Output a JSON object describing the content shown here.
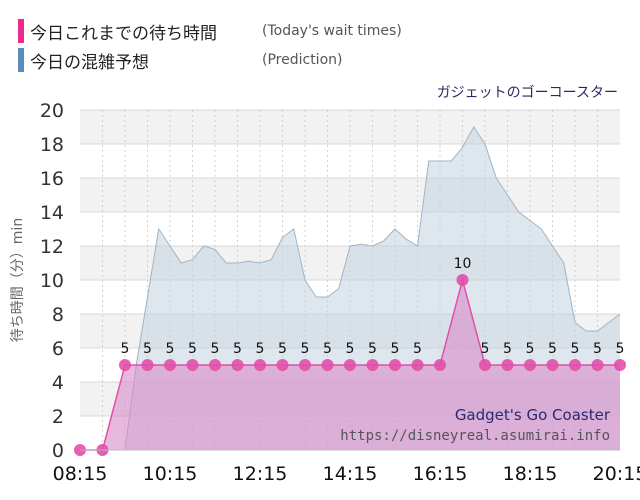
{
  "legend": {
    "items": [
      {
        "label": "今日これまでの待ち時間",
        "sub": "(Today's wait times)",
        "color": "#ee2a8b"
      },
      {
        "label": "今日の混雑予想",
        "sub": "(Prediction)",
        "color": "#5b8db8"
      }
    ]
  },
  "chart_data": {
    "type": "area",
    "title": "ガジェットのゴーコースター",
    "ylabel": "待ち時間（分）min",
    "ylim": [
      0,
      20
    ],
    "yticks": [
      0,
      2,
      4,
      6,
      8,
      10,
      12,
      14,
      16,
      18,
      20
    ],
    "xlim": [
      "08:15",
      "20:15"
    ],
    "xticks": [
      "08:15",
      "10:15",
      "12:15",
      "14:15",
      "16:15",
      "18:15",
      "20:15"
    ],
    "grid": true,
    "series": [
      {
        "name": "今日の混雑予想",
        "x": [
          "09:15",
          "09:30",
          "09:45",
          "10:00",
          "10:15",
          "10:30",
          "10:45",
          "11:00",
          "11:15",
          "11:30",
          "11:45",
          "12:00",
          "12:15",
          "12:30",
          "12:45",
          "13:00",
          "13:15",
          "13:30",
          "13:45",
          "14:00",
          "14:15",
          "14:30",
          "14:45",
          "15:00",
          "15:15",
          "15:30",
          "15:45",
          "16:00",
          "16:15",
          "16:30",
          "16:45",
          "17:00",
          "17:15",
          "17:30",
          "17:45",
          "18:00",
          "18:15",
          "18:30",
          "18:45",
          "19:00",
          "19:15",
          "19:30",
          "19:45",
          "20:00",
          "20:15"
        ],
        "values": [
          0,
          5,
          9,
          13,
          12,
          11,
          11.2,
          12,
          11.8,
          11,
          11,
          11.1,
          11,
          11.2,
          12.5,
          13,
          10,
          9,
          9,
          9.5,
          12,
          12.1,
          12,
          12.3,
          13,
          12.4,
          12,
          17,
          17,
          17,
          17.8,
          19,
          18,
          16,
          15,
          14,
          13.5,
          13,
          12,
          11,
          7.5,
          7,
          7,
          7.5,
          8
        ],
        "color": "#c2d2e0"
      },
      {
        "name": "今日これまでの待ち時間",
        "x": [
          "08:15",
          "08:45",
          "09:15",
          "09:45",
          "10:15",
          "10:45",
          "11:15",
          "11:45",
          "12:15",
          "12:45",
          "13:15",
          "13:45",
          "14:15",
          "14:45",
          "15:15",
          "15:45",
          "16:15",
          "16:45",
          "17:15",
          "17:45",
          "18:15",
          "18:45",
          "19:15",
          "19:45",
          "20:15"
        ],
        "values": [
          0,
          0,
          5,
          5,
          5,
          5,
          5,
          5,
          5,
          5,
          5,
          5,
          5,
          5,
          5,
          5,
          5,
          10,
          5,
          5,
          5,
          5,
          5,
          5,
          5
        ],
        "data_labels": [
          "",
          "",
          "5",
          "5",
          "5",
          "5",
          "5",
          "5",
          "5",
          "5",
          "5",
          "5",
          "5",
          "5",
          "5",
          "5",
          "",
          "10",
          "5",
          "5",
          "5",
          "5",
          "5",
          "5",
          "5"
        ],
        "color": "#e24fa8"
      }
    ]
  },
  "watermark": {
    "name": "Gadget's Go Coaster",
    "url": "https://disneyreal.asumirai.info"
  }
}
